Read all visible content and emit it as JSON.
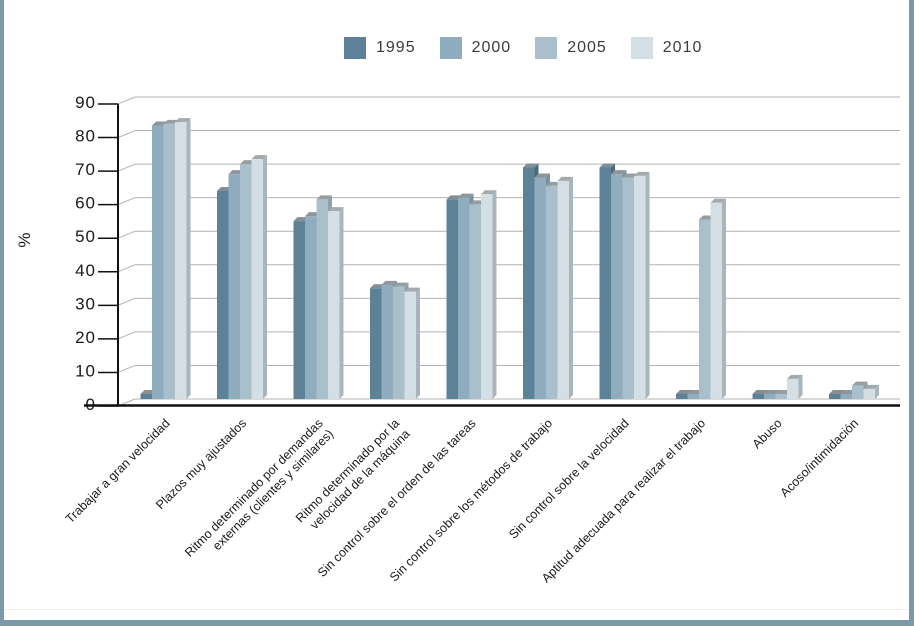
{
  "frame": {
    "border_color": "#7b99a8"
  },
  "chart_data": {
    "type": "bar",
    "style": "3d-extruded",
    "ylabel": "%",
    "ylim": [
      0,
      90
    ],
    "yticks": [
      0,
      10,
      20,
      30,
      40,
      50,
      60,
      70,
      80,
      90
    ],
    "grid": true,
    "legend_position": "top-center",
    "categories": [
      "Trabajar a gran velocidad",
      "Plazos muy ajustados",
      "Ritmo determinado por demandas\nexternas (clientes y similares)",
      "Ritmo determinado por la\nvelocidad de la máquina",
      "Sin control sobre el orden de las tareas",
      "Sin control sobre los métodos de trabajo",
      "Sin control sobre la velocidad",
      "Aptitud adecuada para realizar el trabajo",
      "Abuso",
      "Acoso/intimidación"
    ],
    "series": [
      {
        "name": "1995",
        "color": "#5d8298",
        "side_color": "#49697c",
        "top_color": "#858e93",
        "values": [
          1.5,
          62,
          53,
          33,
          59.5,
          69,
          69,
          1.5,
          1.5,
          1.5
        ]
      },
      {
        "name": "2000",
        "color": "#8fadbe",
        "side_color": "#74919f",
        "top_color": "#8e969b",
        "values": [
          81.5,
          67,
          54.5,
          34,
          60,
          66,
          67,
          1.5,
          1.5,
          1.5
        ]
      },
      {
        "name": "2005",
        "color": "#a9c0cc",
        "side_color": "#8ba1ab",
        "top_color": "#969ea2",
        "values": [
          82,
          70,
          59.5,
          33.5,
          58,
          63.5,
          66,
          53.5,
          1.5,
          4
        ]
      },
      {
        "name": "2010",
        "color": "#d4dee5",
        "side_color": "#a9b5bc",
        "top_color": "#a2aaae",
        "values": [
          82.5,
          71.5,
          56,
          32,
          61,
          65,
          66.5,
          58.5,
          6,
          3
        ]
      }
    ]
  }
}
